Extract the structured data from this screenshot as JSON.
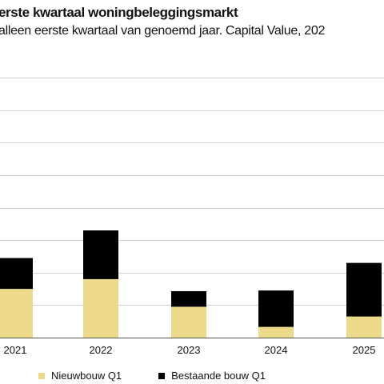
{
  "chart_data": {
    "type": "bar",
    "stacked": true,
    "title": "erste kwartaal woningbeleggingsmarkt",
    "subtitle": "alleen eerste kwartaal van genoemd jaar. Capital Value, 202",
    "categories": [
      "2021",
      "2022",
      "2023",
      "2024",
      "2025"
    ],
    "series": [
      {
        "name": "Nieuwbouw Q1",
        "color": "#ecd98a",
        "values": [
          1.5,
          1.8,
          0.95,
          0.33,
          0.65
        ]
      },
      {
        "name": "Bestaande bouw Q1",
        "color": "#000000",
        "values": [
          0.95,
          1.5,
          0.48,
          1.12,
          1.65
        ]
      }
    ],
    "ylim": [
      0,
      8
    ],
    "gridlines": [
      0,
      1,
      2,
      3,
      4,
      5,
      6,
      7,
      8
    ],
    "grid": true,
    "legend_position": "bottom"
  }
}
